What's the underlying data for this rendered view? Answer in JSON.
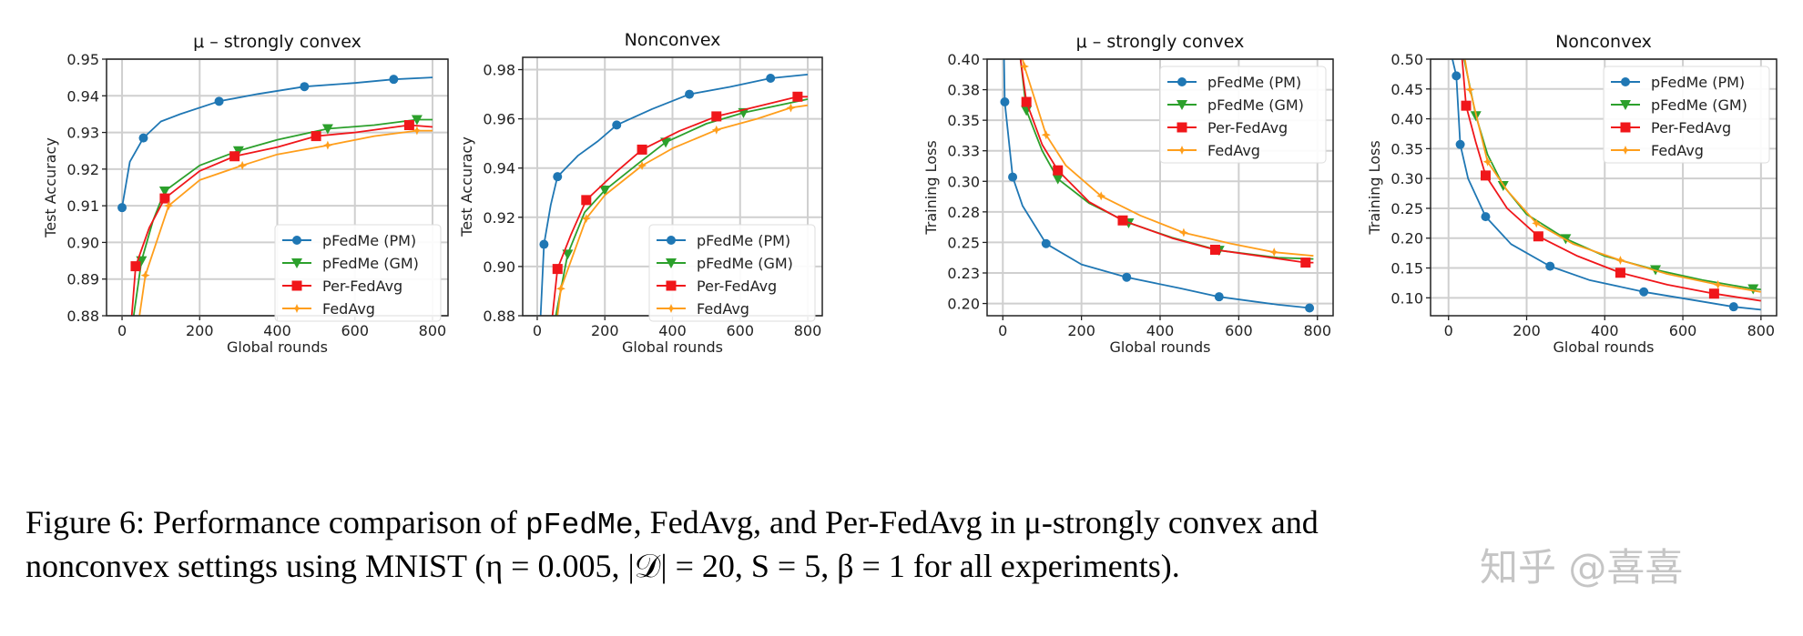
{
  "colors": {
    "pm": "#1f77b4",
    "gm": "#2ca02c",
    "per": "#f0161a",
    "fedavg": "#ff9e1b",
    "grid": "#cfcfcf"
  },
  "legend_labels": [
    "pFedMe (PM)",
    "pFedMe (GM)",
    "Per-FedAvg",
    "FedAvg"
  ],
  "chart_data": [
    {
      "type": "line",
      "title": "μ – strongly convex",
      "xlabel": "Global rounds",
      "ylabel": "Test Accuracy",
      "xlim": [
        -40,
        840
      ],
      "ylim": [
        0.88,
        0.95
      ],
      "grid": true,
      "legend": "lower-right",
      "xticks": [
        0,
        200,
        400,
        600,
        800
      ],
      "xtick_labels": [
        "0",
        "200",
        "400",
        "600",
        "800"
      ],
      "yticks": [
        0.88,
        0.89,
        0.9,
        0.91,
        0.92,
        0.93,
        0.94,
        0.95
      ],
      "ytick_labels": [
        "0.88",
        "0.89",
        "0.90",
        "0.91",
        "0.92",
        "0.93",
        "0.94",
        "0.95"
      ],
      "series": [
        {
          "name": "pFedMe (PM)",
          "key": "pm",
          "marker": "circle",
          "x": [
            0,
            20,
            55,
            100,
            150,
            250,
            350,
            470,
            600,
            700,
            800
          ],
          "y": [
            0.9095,
            0.922,
            0.9285,
            0.933,
            0.935,
            0.9385,
            0.9405,
            0.9425,
            0.9435,
            0.9445,
            0.945
          ],
          "markers": [
            0,
            55,
            250,
            470,
            700
          ]
        },
        {
          "name": "pFedMe (GM)",
          "key": "gm",
          "marker": "triangle-down",
          "x": [
            30,
            50,
            80,
            110,
            200,
            300,
            400,
            530,
            650,
            760,
            800
          ],
          "y": [
            0.88,
            0.895,
            0.906,
            0.914,
            0.921,
            0.925,
            0.928,
            0.931,
            0.932,
            0.9335,
            0.9335
          ],
          "markers": [
            50,
            110,
            300,
            530,
            760
          ]
        },
        {
          "name": "Per-FedAvg",
          "key": "per",
          "marker": "square",
          "x": [
            25,
            35,
            70,
            110,
            200,
            290,
            400,
            500,
            600,
            740,
            800
          ],
          "y": [
            0.88,
            0.8935,
            0.904,
            0.912,
            0.9195,
            0.9235,
            0.926,
            0.929,
            0.93,
            0.932,
            0.9315
          ],
          "markers": [
            35,
            110,
            290,
            500,
            740
          ]
        },
        {
          "name": "FedAvg",
          "key": "fedavg",
          "marker": "star",
          "x": [
            45,
            60,
            120,
            200,
            310,
            400,
            530,
            650,
            760,
            800
          ],
          "y": [
            0.88,
            0.891,
            0.91,
            0.917,
            0.921,
            0.924,
            0.9265,
            0.929,
            0.9305,
            0.9305
          ],
          "markers": [
            60,
            120,
            310,
            530,
            760
          ]
        }
      ]
    },
    {
      "type": "line",
      "title": "Nonconvex",
      "xlabel": "Global rounds",
      "ylabel": "Test Accuracy",
      "xlim": [
        -43,
        843
      ],
      "ylim": [
        0.88,
        0.985
      ],
      "grid": true,
      "legend": "lower-right",
      "xticks": [
        0,
        200,
        400,
        600,
        800
      ],
      "xtick_labels": [
        "0",
        "200",
        "400",
        "600",
        "800"
      ],
      "yticks": [
        0.88,
        0.9,
        0.92,
        0.94,
        0.96,
        0.98
      ],
      "ytick_labels": [
        "0.88",
        "0.90",
        "0.92",
        "0.94",
        "0.96",
        "0.98"
      ],
      "series": [
        {
          "name": "pFedMe (PM)",
          "key": "pm",
          "marker": "circle",
          "x": [
            10,
            20,
            40,
            60,
            120,
            180,
            235,
            340,
            450,
            570,
            690,
            800
          ],
          "y": [
            0.88,
            0.909,
            0.925,
            0.9365,
            0.945,
            0.951,
            0.9575,
            0.964,
            0.97,
            0.973,
            0.9765,
            0.978
          ],
          "markers": [
            20,
            60,
            235,
            450,
            690
          ]
        },
        {
          "name": "pFedMe (GM)",
          "key": "gm",
          "marker": "triangle-down",
          "x": [
            55,
            90,
            140,
            200,
            300,
            380,
            500,
            610,
            800
          ],
          "y": [
            0.88,
            0.905,
            0.922,
            0.931,
            0.942,
            0.9505,
            0.958,
            0.9625,
            0.968
          ],
          "markers": [
            90,
            200,
            380,
            610
          ]
        },
        {
          "name": "Per-FedAvg",
          "key": "per",
          "marker": "square",
          "x": [
            45,
            60,
            100,
            145,
            230,
            310,
            420,
            530,
            650,
            770,
            800
          ],
          "y": [
            0.88,
            0.899,
            0.913,
            0.927,
            0.938,
            0.9475,
            0.955,
            0.961,
            0.965,
            0.969,
            0.969
          ],
          "markers": [
            60,
            145,
            310,
            530,
            770
          ]
        },
        {
          "name": "FedAvg",
          "key": "fedavg",
          "marker": "star",
          "x": [
            60,
            70,
            145,
            200,
            310,
            400,
            530,
            650,
            750,
            800
          ],
          "y": [
            0.88,
            0.891,
            0.9195,
            0.929,
            0.941,
            0.948,
            0.9555,
            0.96,
            0.9645,
            0.9655
          ],
          "markers": [
            70,
            145,
            310,
            530,
            750
          ]
        }
      ]
    },
    {
      "type": "line",
      "title": "μ – strongly convex",
      "xlabel": "Global rounds",
      "ylabel": "Training Loss",
      "xlim": [
        -40,
        840
      ],
      "ylim": [
        0.19,
        0.4
      ],
      "grid": true,
      "legend": "upper-right",
      "xticks": [
        0,
        200,
        400,
        600,
        800
      ],
      "xtick_labels": [
        "0",
        "200",
        "400",
        "600",
        "800"
      ],
      "yticks": [
        0.2,
        0.225,
        0.25,
        0.275,
        0.3,
        0.325,
        0.35,
        0.375,
        0.4
      ],
      "ytick_labels": [
        "0.20",
        "0.23",
        "0.25",
        "0.28",
        "0.30",
        "0.33",
        "0.35",
        "0.38",
        "0.40"
      ],
      "series": [
        {
          "name": "pFedMe (PM)",
          "key": "pm",
          "marker": "circle",
          "x": [
            3,
            5,
            25,
            50,
            110,
            200,
            315,
            450,
            550,
            700,
            790
          ],
          "y": [
            0.4,
            0.365,
            0.3035,
            0.28,
            0.249,
            0.232,
            0.2215,
            0.2125,
            0.2055,
            0.199,
            0.196
          ],
          "markers": [
            5,
            25,
            110,
            315,
            550,
            780
          ]
        },
        {
          "name": "pFedMe (GM)",
          "key": "gm",
          "marker": "triangle-down",
          "x": [
            45,
            60,
            100,
            140,
            220,
            320,
            430,
            550,
            700,
            790
          ],
          "y": [
            0.4,
            0.358,
            0.325,
            0.302,
            0.282,
            0.266,
            0.254,
            0.2435,
            0.2375,
            0.2365
          ],
          "markers": [
            60,
            140,
            320,
            550
          ]
        },
        {
          "name": "Per-FedAvg",
          "key": "per",
          "marker": "square",
          "x": [
            45,
            60,
            100,
            140,
            220,
            305,
            430,
            540,
            650,
            770,
            790
          ],
          "y": [
            0.4,
            0.365,
            0.33,
            0.309,
            0.283,
            0.268,
            0.2535,
            0.244,
            0.239,
            0.2335,
            0.2335
          ],
          "markers": [
            60,
            140,
            305,
            540,
            770
          ]
        },
        {
          "name": "FedAvg",
          "key": "fedavg",
          "marker": "star",
          "x": [
            50,
            55,
            110,
            160,
            250,
            350,
            460,
            580,
            690,
            790
          ],
          "y": [
            0.4,
            0.394,
            0.338,
            0.313,
            0.288,
            0.272,
            0.258,
            0.249,
            0.242,
            0.239
          ],
          "markers": [
            55,
            110,
            250,
            460,
            690
          ]
        }
      ]
    },
    {
      "type": "line",
      "title": "Nonconvex",
      "xlabel": "Global rounds",
      "ylabel": "Training Loss",
      "xlim": [
        -46,
        840
      ],
      "ylim": [
        0.07,
        0.5
      ],
      "grid": true,
      "legend": "upper-right",
      "xticks": [
        0,
        200,
        400,
        600,
        800
      ],
      "xtick_labels": [
        "0",
        "200",
        "400",
        "600",
        "800"
      ],
      "yticks": [
        0.1,
        0.15,
        0.2,
        0.25,
        0.3,
        0.35,
        0.4,
        0.45,
        0.5
      ],
      "ytick_labels": [
        "0.10",
        "0.15",
        "0.20",
        "0.25",
        "0.30",
        "0.35",
        "0.40",
        "0.45",
        "0.50"
      ],
      "series": [
        {
          "name": "pFedMe (PM)",
          "key": "pm",
          "marker": "circle",
          "x": [
            10,
            20,
            30,
            50,
            95,
            160,
            260,
            360,
            500,
            620,
            730,
            800
          ],
          "y": [
            0.5,
            0.472,
            0.357,
            0.3,
            0.236,
            0.19,
            0.153,
            0.13,
            0.11,
            0.097,
            0.085,
            0.08
          ],
          "markers": [
            20,
            30,
            95,
            260,
            500,
            730
          ]
        },
        {
          "name": "pFedMe (GM)",
          "key": "gm",
          "marker": "triangle-down",
          "x": [
            40,
            70,
            100,
            140,
            200,
            300,
            400,
            530,
            650,
            780,
            800
          ],
          "y": [
            0.5,
            0.405,
            0.34,
            0.288,
            0.24,
            0.199,
            0.17,
            0.147,
            0.13,
            0.115,
            0.114
          ],
          "markers": [
            70,
            140,
            300,
            530,
            780
          ]
        },
        {
          "name": "Per-FedAvg",
          "key": "per",
          "marker": "square",
          "x": [
            35,
            45,
            70,
            95,
            150,
            230,
            330,
            440,
            560,
            680,
            800
          ],
          "y": [
            0.5,
            0.422,
            0.36,
            0.305,
            0.25,
            0.203,
            0.17,
            0.142,
            0.122,
            0.107,
            0.095
          ],
          "markers": [
            45,
            95,
            230,
            440,
            680
          ]
        },
        {
          "name": "FedAvg",
          "key": "fedavg",
          "marker": "star",
          "x": [
            42,
            55,
            100,
            150,
            225,
            320,
            440,
            560,
            690,
            800
          ],
          "y": [
            0.5,
            0.449,
            0.328,
            0.28,
            0.225,
            0.19,
            0.163,
            0.14,
            0.122,
            0.11
          ],
          "markers": [
            55,
            100,
            225,
            440,
            690
          ]
        }
      ]
    }
  ],
  "caption": {
    "line1_a": "Figure 6: Performance comparison of ",
    "line1_code": "pFedMe",
    "line1_b": ", FedAvg, and Per-FedAvg in μ-strongly convex and",
    "line2": "nonconvex settings using MNIST (η = 0.005, |𝒟| = 20, S = 5, β = 1 for all experiments)."
  },
  "watermark": "知乎 @喜喜"
}
